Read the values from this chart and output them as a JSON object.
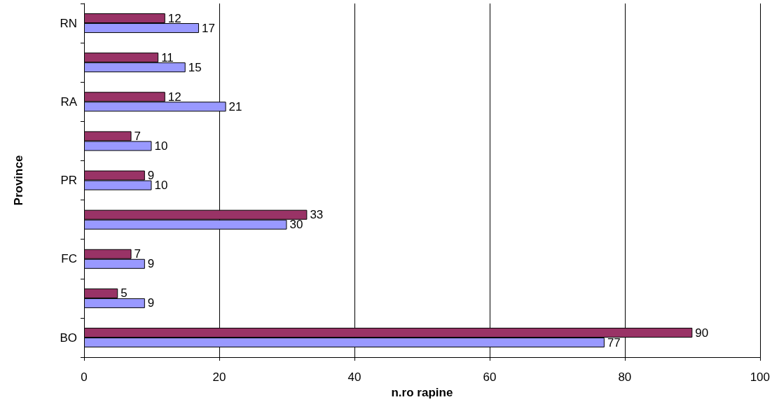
{
  "chart_data": {
    "type": "bar",
    "orientation": "horizontal",
    "xlabel": "n.ro rapine",
    "ylabel": "Province",
    "categories": [
      "RN",
      null,
      "RA",
      null,
      "PR",
      null,
      "FC",
      null,
      "BO"
    ],
    "series": [
      {
        "color": "#993366",
        "values": [
          12,
          11,
          12,
          7,
          9,
          33,
          7,
          5,
          90
        ]
      },
      {
        "color": "#9999ff",
        "values": [
          17,
          15,
          21,
          10,
          10,
          30,
          9,
          9,
          77
        ]
      }
    ],
    "xlim": [
      0,
      100
    ],
    "xticks": [
      0,
      20,
      40,
      60,
      80,
      100
    ],
    "grid": "x",
    "data_labels": true
  }
}
